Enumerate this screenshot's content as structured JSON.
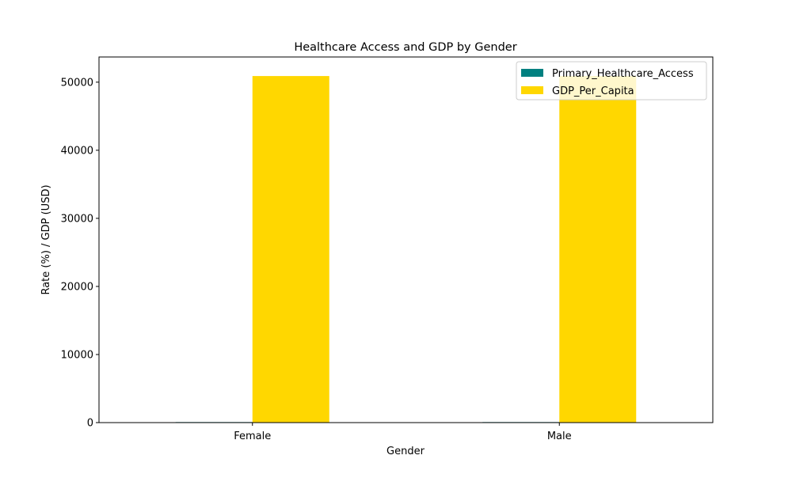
{
  "chart_data": {
    "type": "bar",
    "title": "Healthcare Access and GDP by Gender",
    "xlabel": "Gender",
    "ylabel": "Rate (%) / GDP (USD)",
    "categories": [
      "Female",
      "Male"
    ],
    "series": [
      {
        "name": "Primary_Healthcare_Access",
        "color": "#008080",
        "values": [
          75,
          75
        ]
      },
      {
        "name": "GDP_Per_Capita",
        "color": "#FFD700",
        "values": [
          50900,
          50900
        ]
      }
    ],
    "ylim": [
      0,
      53700
    ],
    "yticks": [
      0,
      10000,
      20000,
      30000,
      40000,
      50000
    ],
    "ytick_labels": [
      "0",
      "10000",
      "20000",
      "30000",
      "40000",
      "50000"
    ],
    "grid": false,
    "legend_position": "top-right"
  }
}
